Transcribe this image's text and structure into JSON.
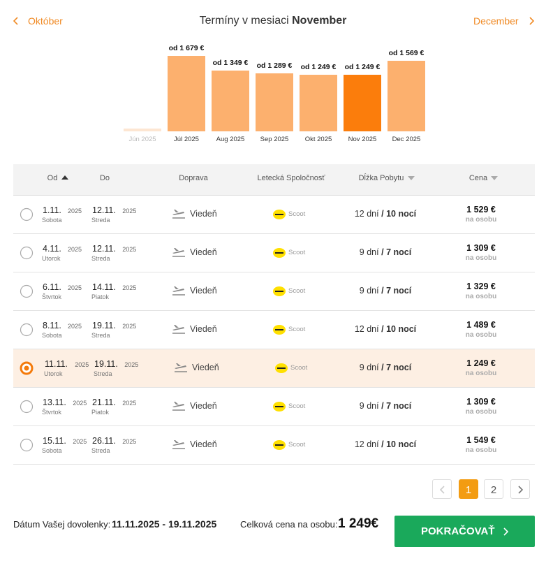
{
  "header": {
    "prev_month": "Október",
    "title": "Termíny v mesiaci",
    "month": "November",
    "next_month": "December"
  },
  "chart_data": {
    "type": "bar",
    "categories": [
      "Jún 2025",
      "Júl 2025",
      "Aug 2025",
      "Sep 2025",
      "Okt 2025",
      "Nov 2025",
      "Dec 2025"
    ],
    "values": [
      null,
      1679,
      1349,
      1289,
      1249,
      1249,
      1569
    ],
    "value_labels": [
      null,
      "od 1 679 €",
      "od 1 349 €",
      "od 1 289 €",
      "od 1 249 €",
      "od 1 249 €",
      "od 1 569 €"
    ],
    "colors": [
      "#fde6d2",
      "#fcb06e",
      "#fcb06e",
      "#fcb06e",
      "#fcb06e",
      "#fb7d0c",
      "#fcb06e"
    ]
  },
  "table": {
    "columns": [
      "Od",
      "Do",
      "Doprava",
      "Letecká Spoločnosť",
      "Dĺžka Pobytu",
      "Cena"
    ],
    "stay_separator": "/",
    "selected_row": 4,
    "rows": [
      {
        "from": {
          "date": "1.11.",
          "year": "2025",
          "day": "Sobota"
        },
        "to": {
          "date": "12.11.",
          "year": "2025",
          "day": "Streda"
        },
        "transport": "Viedeň",
        "airline": "Scoot",
        "days": "12 dní",
        "nights": "10 nocí",
        "price": "1 529 €",
        "price_note": "na osobu"
      },
      {
        "from": {
          "date": "4.11.",
          "year": "2025",
          "day": "Utorok"
        },
        "to": {
          "date": "12.11.",
          "year": "2025",
          "day": "Streda"
        },
        "transport": "Viedeň",
        "airline": "Scoot",
        "days": "9 dní",
        "nights": "7 nocí",
        "price": "1 309 €",
        "price_note": "na osobu"
      },
      {
        "from": {
          "date": "6.11.",
          "year": "2025",
          "day": "Štvrtok"
        },
        "to": {
          "date": "14.11.",
          "year": "2025",
          "day": "Piatok"
        },
        "transport": "Viedeň",
        "airline": "Scoot",
        "days": "9 dní",
        "nights": "7 nocí",
        "price": "1 329 €",
        "price_note": "na osobu"
      },
      {
        "from": {
          "date": "8.11.",
          "year": "2025",
          "day": "Sobota"
        },
        "to": {
          "date": "19.11.",
          "year": "2025",
          "day": "Streda"
        },
        "transport": "Viedeň",
        "airline": "Scoot",
        "days": "12 dní",
        "nights": "10 nocí",
        "price": "1 489 €",
        "price_note": "na osobu"
      },
      {
        "from": {
          "date": "11.11.",
          "year": "2025",
          "day": "Utorok"
        },
        "to": {
          "date": "19.11.",
          "year": "2025",
          "day": "Streda"
        },
        "transport": "Viedeň",
        "airline": "Scoot",
        "days": "9 dní",
        "nights": "7 nocí",
        "price": "1 249 €",
        "price_note": "na osobu"
      },
      {
        "from": {
          "date": "13.11.",
          "year": "2025",
          "day": "Štvrtok"
        },
        "to": {
          "date": "21.11.",
          "year": "2025",
          "day": "Piatok"
        },
        "transport": "Viedeň",
        "airline": "Scoot",
        "days": "9 dní",
        "nights": "7 nocí",
        "price": "1 309 €",
        "price_note": "na osobu"
      },
      {
        "from": {
          "date": "15.11.",
          "year": "2025",
          "day": "Sobota"
        },
        "to": {
          "date": "26.11.",
          "year": "2025",
          "day": "Streda"
        },
        "transport": "Viedeň",
        "airline": "Scoot",
        "days": "12 dní",
        "nights": "10 nocí",
        "price": "1 549 €",
        "price_note": "na osobu"
      }
    ]
  },
  "pagination": {
    "pages": [
      "1",
      "2"
    ],
    "current": 0
  },
  "footer": {
    "date_label": "Dátum Vašej dovolenky:",
    "dates": "11.11.2025 - 19.11.2025",
    "price_label": "Celková cena na osobu:",
    "price": "1 249€",
    "button": "POKRAČOVAŤ"
  }
}
